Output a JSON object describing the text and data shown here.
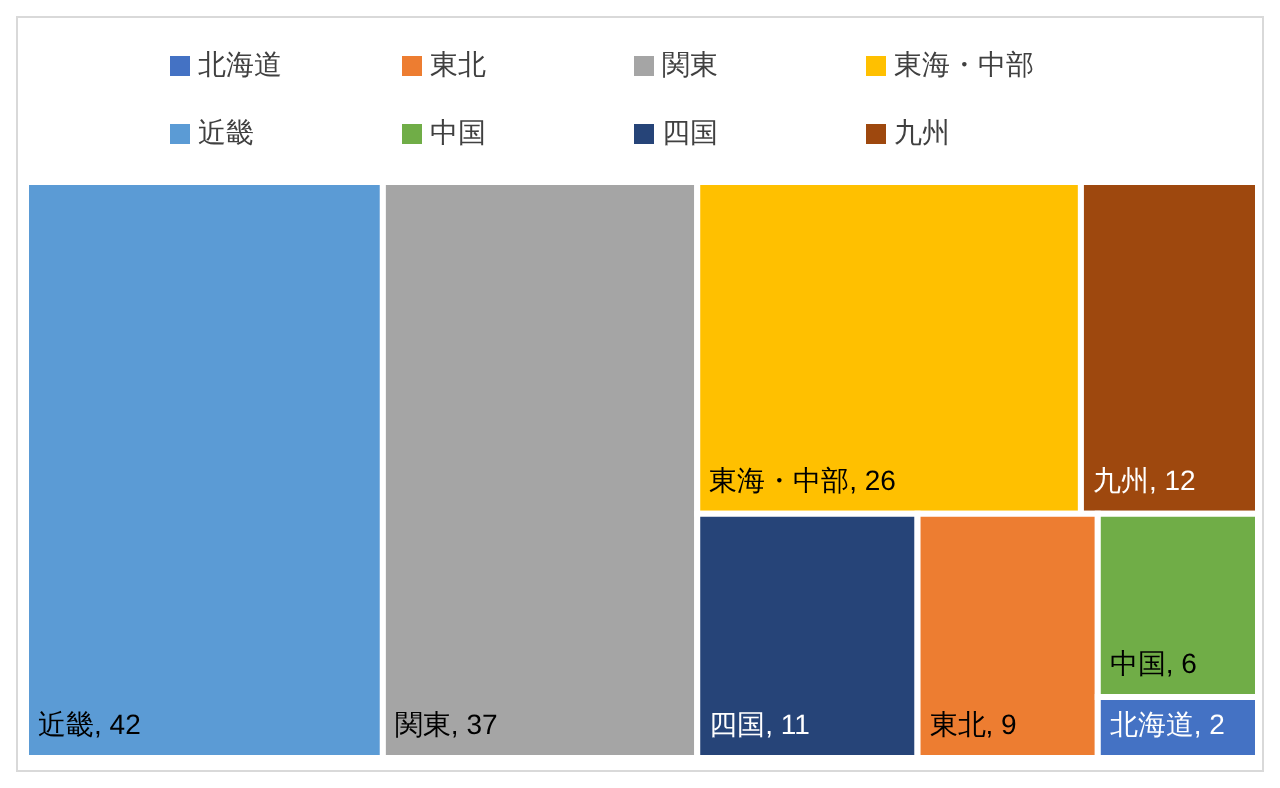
{
  "chart_data": {
    "type": "other",
    "series": [
      {
        "name": "北海道",
        "color": "#4472c4",
        "values": [
          2
        ],
        "value_labels": [
          ", 2"
        ]
      },
      {
        "name": "東北",
        "color": "#ed7d31",
        "values": [
          9
        ],
        "value_labels": [
          ", 9"
        ]
      },
      {
        "name": "関東",
        "color": "#a5a5a5",
        "values": [
          37
        ],
        "value_labels": [
          ", 37"
        ]
      },
      {
        "name": "東海・中部",
        "color": "#ffc000",
        "values": [
          26
        ],
        "value_labels": [
          ", 26"
        ]
      },
      {
        "name": "近畿",
        "color": "#5b9bd5",
        "values": [
          42
        ],
        "value_labels": [
          ", 42"
        ]
      },
      {
        "name": "中国",
        "color": "#70ad47",
        "values": [
          6
        ],
        "value_labels": [
          ", 6"
        ]
      },
      {
        "name": "四国",
        "color": "#264478",
        "values": [
          11
        ],
        "value_labels": [
          ", 11"
        ]
      },
      {
        "name": "九州",
        "color": "#9e480e",
        "values": [
          12
        ],
        "value_labels": [
          ", 12"
        ]
      }
    ],
    "legend": "top"
  }
}
